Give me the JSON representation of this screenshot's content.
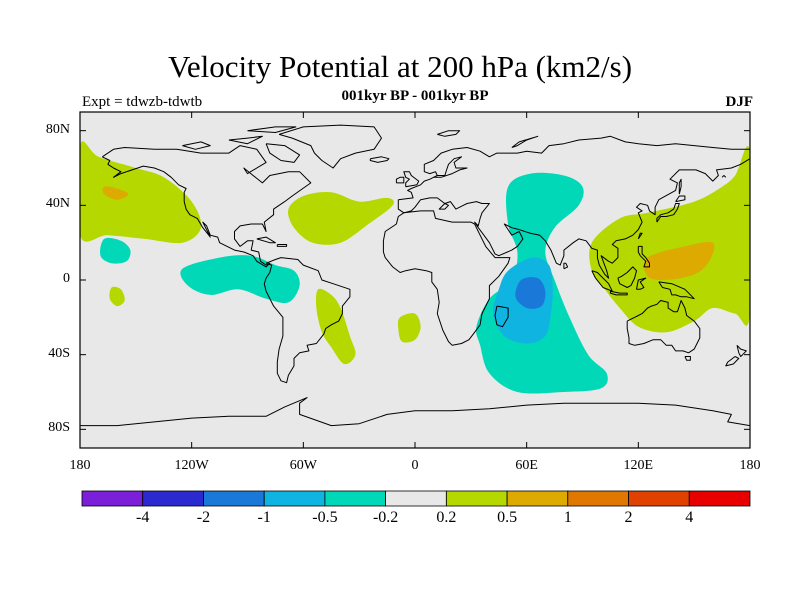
{
  "title": "Velocity Potential at 200 hPa (km2/s)",
  "subtitle": "001kyr BP - 001kyr BP",
  "left_label": "Expt = tdwzb-tdwtb",
  "right_label": "DJF",
  "map": {
    "projection": "cylindrical equidistant",
    "lon_range": [
      -180,
      180
    ],
    "lat_range": [
      -90,
      90
    ],
    "background_color": "#e8e8e8",
    "lat_ticks": [
      {
        "value": 80,
        "label": "80N"
      },
      {
        "value": 40,
        "label": "40N"
      },
      {
        "value": 0,
        "label": "0"
      },
      {
        "value": -40,
        "label": "40S"
      },
      {
        "value": -80,
        "label": "80S"
      }
    ],
    "lon_ticks": [
      {
        "value": -180,
        "label": "180"
      },
      {
        "value": -120,
        "label": "120W"
      },
      {
        "value": -60,
        "label": "60W"
      },
      {
        "value": 0,
        "label": "0"
      },
      {
        "value": 60,
        "label": "60E"
      },
      {
        "value": 120,
        "label": "120E"
      },
      {
        "value": 180,
        "label": "180"
      }
    ]
  },
  "colorbar": {
    "colors": [
      "#7b1fd8",
      "#2a2ad0",
      "#1a78d8",
      "#10b4e0",
      "#00d8b8",
      "#e8e8e8",
      "#b4d800",
      "#dcaa00",
      "#e07800",
      "#e04000",
      "#e80000"
    ],
    "labels": [
      "-4",
      "-2",
      "-1",
      "-0.5",
      "-0.2",
      "0.2",
      "0.5",
      "1",
      "2",
      "4"
    ]
  },
  "fields": [
    {
      "id": "pos-north-pacific",
      "level": "0.2",
      "color": "#b4d800",
      "pts": [
        [
          -180,
          72
        ],
        [
          -170,
          66
        ],
        [
          -150,
          60
        ],
        [
          -135,
          55
        ],
        [
          -120,
          42
        ],
        [
          -115,
          28
        ],
        [
          -125,
          20
        ],
        [
          -145,
          22
        ],
        [
          -165,
          24
        ],
        [
          -180,
          24
        ]
      ]
    },
    {
      "id": "pos-north-pacific-core",
      "level": "0.5",
      "color": "#dcaa00",
      "pts": [
        [
          -167,
          50
        ],
        [
          -160,
          49
        ],
        [
          -154,
          46
        ],
        [
          -160,
          43
        ],
        [
          -167,
          46
        ]
      ]
    },
    {
      "id": "pos-north-atlantic",
      "level": "0.2",
      "color": "#b4d800",
      "pts": [
        [
          -68,
          38
        ],
        [
          -60,
          45
        ],
        [
          -45,
          47
        ],
        [
          -30,
          42
        ],
        [
          -15,
          44
        ],
        [
          -12,
          40
        ],
        [
          -25,
          30
        ],
        [
          -40,
          20
        ],
        [
          -55,
          20
        ],
        [
          -65,
          28
        ]
      ]
    },
    {
      "id": "pos-south-america",
      "level": "0.2",
      "color": "#b4d800",
      "pts": [
        [
          -52,
          -5
        ],
        [
          -45,
          -8
        ],
        [
          -40,
          -15
        ],
        [
          -35,
          -30
        ],
        [
          -32,
          -40
        ],
        [
          -38,
          -45
        ],
        [
          -45,
          -36
        ],
        [
          -50,
          -28
        ],
        [
          -53,
          -15
        ]
      ]
    },
    {
      "id": "pos-south-atlantic",
      "level": "0.2",
      "color": "#b4d800",
      "pts": [
        [
          -8,
          -20
        ],
        [
          0,
          -18
        ],
        [
          3,
          -25
        ],
        [
          0,
          -32
        ],
        [
          -7,
          -33
        ],
        [
          -9,
          -26
        ]
      ]
    },
    {
      "id": "pos-small-pacific",
      "level": "0.2",
      "color": "#b4d800",
      "pts": [
        [
          -163,
          -4
        ],
        [
          -158,
          -5
        ],
        [
          -156,
          -11
        ],
        [
          -160,
          -14
        ],
        [
          -164,
          -10
        ]
      ]
    },
    {
      "id": "pos-west-pacific",
      "level": "0.2",
      "color": "#b4d800",
      "pts": [
        [
          95,
          20
        ],
        [
          110,
          33
        ],
        [
          125,
          36
        ],
        [
          150,
          42
        ],
        [
          165,
          50
        ],
        [
          172,
          56
        ],
        [
          180,
          68
        ],
        [
          180,
          -18
        ],
        [
          172,
          -18
        ],
        [
          160,
          -15
        ],
        [
          150,
          -22
        ],
        [
          135,
          -28
        ],
        [
          120,
          -25
        ],
        [
          110,
          -15
        ],
        [
          102,
          -5
        ],
        [
          95,
          5
        ]
      ]
    },
    {
      "id": "pos-west-pacific-core",
      "level": "0.5",
      "color": "#dcaa00",
      "pts": [
        [
          125,
          12
        ],
        [
          145,
          18
        ],
        [
          160,
          20
        ],
        [
          158,
          10
        ],
        [
          150,
          3
        ],
        [
          135,
          0
        ],
        [
          125,
          2
        ]
      ]
    },
    {
      "id": "neg-indian-ocean",
      "level": "-0.2",
      "color": "#00d8b8",
      "pts": [
        [
          50,
          50
        ],
        [
          62,
          57
        ],
        [
          80,
          56
        ],
        [
          90,
          50
        ],
        [
          88,
          40
        ],
        [
          75,
          28
        ],
        [
          70,
          15
        ],
        [
          75,
          0
        ],
        [
          83,
          -20
        ],
        [
          93,
          -40
        ],
        [
          103,
          -50
        ],
        [
          100,
          -58
        ],
        [
          80,
          -60
        ],
        [
          55,
          -60
        ],
        [
          40,
          -50
        ],
        [
          35,
          -35
        ],
        [
          33,
          -25
        ],
        [
          40,
          -10
        ],
        [
          52,
          0
        ],
        [
          55,
          15
        ],
        [
          50,
          30
        ]
      ]
    },
    {
      "id": "neg-indian-ocean-mid",
      "level": "-0.5",
      "color": "#10b4e0",
      "pts": [
        [
          50,
          5
        ],
        [
          63,
          12
        ],
        [
          72,
          8
        ],
        [
          74,
          -5
        ],
        [
          73,
          -18
        ],
        [
          70,
          -30
        ],
        [
          60,
          -34
        ],
        [
          48,
          -30
        ],
        [
          42,
          -18
        ],
        [
          45,
          -5
        ]
      ]
    },
    {
      "id": "neg-indian-ocean-core",
      "level": "-1",
      "color": "#1a78d8",
      "pts": [
        [
          57,
          0
        ],
        [
          66,
          1
        ],
        [
          70,
          -6
        ],
        [
          68,
          -14
        ],
        [
          60,
          -15
        ],
        [
          54,
          -9
        ]
      ]
    },
    {
      "id": "neg-central-pacific",
      "level": "-0.2",
      "color": "#00d8b8",
      "pts": [
        [
          -167,
          22
        ],
        [
          -158,
          21
        ],
        [
          -153,
          16
        ],
        [
          -155,
          10
        ],
        [
          -163,
          9
        ],
        [
          -169,
          13
        ]
      ]
    },
    {
      "id": "neg-tropical-east-pacific",
      "level": "-0.2",
      "color": "#00d8b8",
      "pts": [
        [
          -125,
          6
        ],
        [
          -105,
          12
        ],
        [
          -88,
          13
        ],
        [
          -75,
          8
        ],
        [
          -65,
          5
        ],
        [
          -62,
          -3
        ],
        [
          -68,
          -12
        ],
        [
          -80,
          -10
        ],
        [
          -95,
          -5
        ],
        [
          -110,
          -8
        ],
        [
          -122,
          -3
        ]
      ]
    }
  ]
}
